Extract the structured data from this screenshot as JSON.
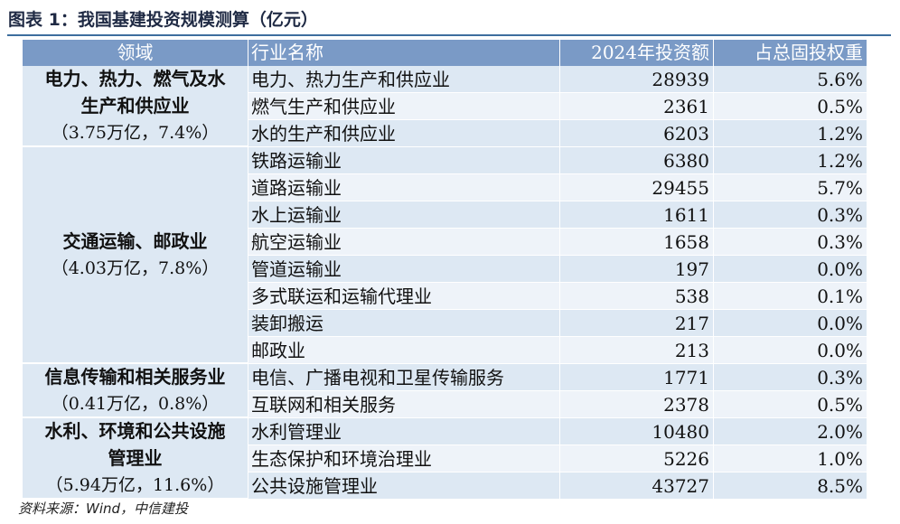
{
  "caption": "图表 1：我国基建投资规模测算（亿元）",
  "headers": [
    "领域",
    "行业名称",
    "2024年投资额",
    "占总固投权重"
  ],
  "groups": [
    {
      "domain_lines": [
        "电力、热力、燃气及水",
        "生产和供应业"
      ],
      "domain_sub": "（3.75万亿，7.4%）",
      "rows": [
        {
          "name": "电力、热力生产和供应业",
          "amount": "28939",
          "weight": "5.6%"
        },
        {
          "name": "燃气生产和供应业",
          "amount": "2361",
          "weight": "0.5%"
        },
        {
          "name": "水的生产和供应业",
          "amount": "6203",
          "weight": "1.2%"
        }
      ]
    },
    {
      "domain_lines": [
        "交通运输、邮政业"
      ],
      "domain_sub": "（4.03万亿，7.8%）",
      "rows": [
        {
          "name": "铁路运输业",
          "amount": "6380",
          "weight": "1.2%"
        },
        {
          "name": "道路运输业",
          "amount": "29455",
          "weight": "5.7%"
        },
        {
          "name": "水上运输业",
          "amount": "1611",
          "weight": "0.3%"
        },
        {
          "name": "航空运输业",
          "amount": "1658",
          "weight": "0.3%"
        },
        {
          "name": "管道运输业",
          "amount": "197",
          "weight": "0.0%"
        },
        {
          "name": "多式联运和运输代理业",
          "amount": "538",
          "weight": "0.1%"
        },
        {
          "name": "装卸搬运",
          "amount": "217",
          "weight": "0.0%"
        },
        {
          "name": "邮政业",
          "amount": "213",
          "weight": "0.0%"
        }
      ]
    },
    {
      "domain_lines": [
        "信息传输和相关服务业"
      ],
      "domain_sub": "（0.41万亿，0.8%）",
      "rows": [
        {
          "name": "电信、广播电视和卫星传输服务",
          "amount": "1771",
          "weight": "0.3%"
        },
        {
          "name": "互联网和相关服务",
          "amount": "2378",
          "weight": "0.5%"
        }
      ]
    },
    {
      "domain_lines": [
        "水利、环境和公共设施",
        "管理业"
      ],
      "domain_sub": "（5.94万亿，11.6%）",
      "rows": [
        {
          "name": "水利管理业",
          "amount": "10480",
          "weight": "2.0%"
        },
        {
          "name": "生态保护和环境治理业",
          "amount": "5226",
          "weight": "1.0%"
        },
        {
          "name": "公共设施管理业",
          "amount": "43727",
          "weight": "8.5%"
        }
      ]
    }
  ],
  "source": "资料来源：Wind，中信建投",
  "colors": {
    "header_bg": "#7a9ac6",
    "row_bg": "#dde8f3",
    "row_alt_bg": "#eef3f9",
    "rule": "#3d6e9e"
  }
}
